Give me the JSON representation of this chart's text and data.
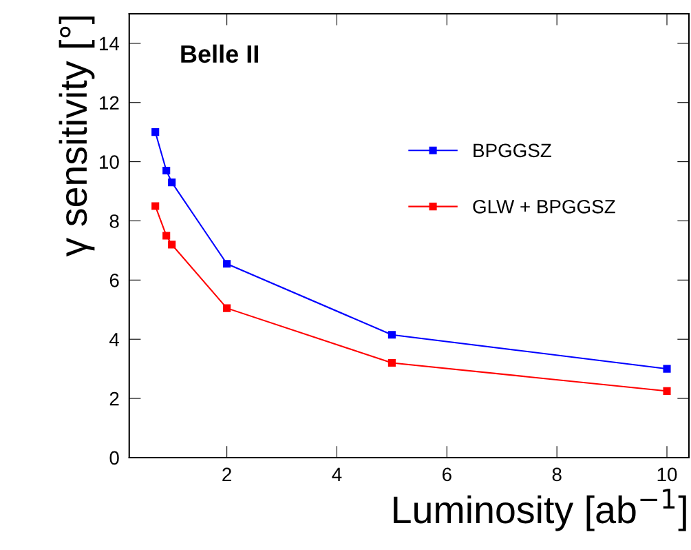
{
  "chart_data": {
    "type": "line",
    "xlabel": "Luminosity [ab$^{−1}$]",
    "ylabel": "γ sensitivity [°]",
    "annotations": [
      "Belle II"
    ],
    "x": [
      0.7,
      0.9,
      1.0,
      2,
      5,
      10
    ],
    "series": [
      {
        "name": "BPGGSZ",
        "color": "#0000ff",
        "values": [
          11.0,
          9.7,
          9.3,
          6.55,
          4.15,
          3.0
        ]
      },
      {
        "name": "GLW + BPGGSZ",
        "color": "#ff0000",
        "values": [
          8.5,
          7.5,
          7.2,
          5.05,
          3.2,
          2.25
        ]
      }
    ],
    "xlim": [
      0.225,
      10.4
    ],
    "ylim": [
      0,
      15
    ],
    "xticks": [
      2,
      4,
      6,
      8,
      10
    ],
    "yticks": [
      0,
      2,
      4,
      6,
      8,
      10,
      12,
      14
    ],
    "grid": false,
    "legend": "right",
    "marker": "square",
    "line_style": "solid"
  }
}
